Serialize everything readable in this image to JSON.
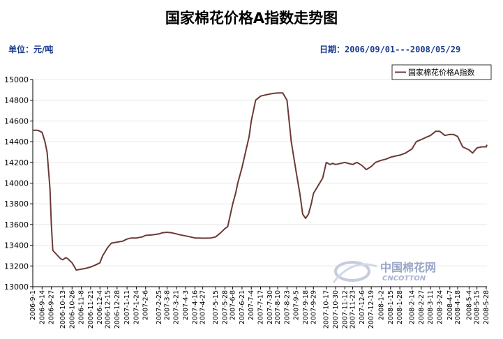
{
  "header": {
    "title": "国家棉花价格A指数走势图",
    "unit_label": "单位：元/吨",
    "date_range_label": "日期：2006/09/01---2008/05/29"
  },
  "watermark": {
    "name": "中国棉花网",
    "sub": "CNCOTTON"
  },
  "colors": {
    "series": "#6b3a35",
    "axis": "#000000",
    "grid": "#e8e8e8"
  },
  "chart_data": {
    "type": "line",
    "title": "国家棉花价格A指数走势图",
    "ylabel": "",
    "xlabel": "",
    "ylim": [
      13000,
      15000
    ],
    "yticks": [
      13000,
      13200,
      13400,
      13600,
      13800,
      14000,
      14200,
      14400,
      14600,
      14800,
      15000
    ],
    "grid": true,
    "legend": "top-right",
    "xtick_labels": [
      "2006-9-1",
      "2006-9-14",
      "2006-9-27",
      "2006-10-13",
      "2006-10-26",
      "2006-11-8",
      "2006-11-21",
      "2006-12-4",
      "2006-12-15",
      "2006-12-28",
      "2007-1-11",
      "2007-1-24",
      "2007-2-6",
      "2007-2-25",
      "2007-3-8",
      "2007-3-21",
      "2007-4-3",
      "2007-4-16",
      "2007-4-27",
      "2007-5-15",
      "2007-5-28",
      "2007-6-8",
      "2007-6-21",
      "2007-7-4",
      "2007-7-17",
      "2007-7-30",
      "2007-8-10",
      "2007-8-23",
      "2007-9-5",
      "2007-9-18",
      "2007-9-29",
      "2007-10-17",
      "2007-10-30",
      "2007-11-12",
      "2007-11-23",
      "2007-12-6",
      "2007-12-19",
      "2008-1-2",
      "2008-1-15",
      "2008-1-28",
      "2008-2-14",
      "2008-2-27",
      "2008-3-11",
      "2008-3-24",
      "2008-4-7",
      "2008-4-18",
      "2008-5-4",
      "2008-5-15",
      "2008-5-28"
    ],
    "series": [
      {
        "name": "国家棉花价格A指数",
        "x": [
          "2006-9-1",
          "2006-9-8",
          "2006-9-14",
          "2006-9-18",
          "2006-9-21",
          "2006-9-25",
          "2006-9-27",
          "2006-9-29",
          "2006-10-10",
          "2006-10-13",
          "2006-10-17",
          "2006-10-20",
          "2006-10-26",
          "2006-11-1",
          "2006-11-8",
          "2006-11-13",
          "2006-11-21",
          "2006-11-28",
          "2006-12-4",
          "2006-12-8",
          "2006-12-15",
          "2006-12-20",
          "2006-12-28",
          "2007-1-5",
          "2007-1-11",
          "2007-1-17",
          "2007-1-24",
          "2007-2-1",
          "2007-2-6",
          "2007-2-15",
          "2007-2-25",
          "2007-3-1",
          "2007-3-8",
          "2007-3-15",
          "2007-3-21",
          "2007-3-27",
          "2007-4-3",
          "2007-4-10",
          "2007-4-16",
          "2007-4-22",
          "2007-4-27",
          "2007-5-8",
          "2007-5-15",
          "2007-5-22",
          "2007-5-28",
          "2007-6-1",
          "2007-6-8",
          "2007-6-12",
          "2007-6-15",
          "2007-6-21",
          "2007-6-26",
          "2007-7-1",
          "2007-7-4",
          "2007-7-10",
          "2007-7-17",
          "2007-7-23",
          "2007-7-30",
          "2007-8-3",
          "2007-8-10",
          "2007-8-17",
          "2007-8-23",
          "2007-8-29",
          "2007-9-5",
          "2007-9-10",
          "2007-9-14",
          "2007-9-18",
          "2007-9-22",
          "2007-9-26",
          "2007-9-29",
          "2007-10-12",
          "2007-10-17",
          "2007-10-22",
          "2007-10-26",
          "2007-10-30",
          "2007-11-6",
          "2007-11-12",
          "2007-11-17",
          "2007-11-23",
          "2007-11-29",
          "2007-12-6",
          "2007-12-12",
          "2007-12-19",
          "2007-12-25",
          "2008-1-2",
          "2008-1-8",
          "2008-1-15",
          "2008-1-21",
          "2008-1-28",
          "2008-2-5",
          "2008-2-14",
          "2008-2-20",
          "2008-2-27",
          "2008-3-4",
          "2008-3-11",
          "2008-3-18",
          "2008-3-24",
          "2008-3-31",
          "2008-4-7",
          "2008-4-12",
          "2008-4-18",
          "2008-4-25",
          "2008-5-4",
          "2008-5-9",
          "2008-5-15",
          "2008-5-22",
          "2008-5-28",
          "2008-5-29"
        ],
        "values": [
          14510,
          14510,
          14490,
          14400,
          14300,
          13950,
          13600,
          13350,
          13270,
          13260,
          13280,
          13270,
          13230,
          13160,
          13170,
          13175,
          13190,
          13210,
          13230,
          13300,
          13380,
          13420,
          13430,
          13440,
          13460,
          13470,
          13470,
          13480,
          13495,
          13500,
          13510,
          13520,
          13525,
          13520,
          13510,
          13500,
          13490,
          13480,
          13470,
          13470,
          13468,
          13470,
          13480,
          13520,
          13560,
          13580,
          13800,
          13900,
          14000,
          14150,
          14300,
          14450,
          14600,
          14800,
          14840,
          14850,
          14860,
          14865,
          14870,
          14870,
          14800,
          14400,
          14100,
          13900,
          13700,
          13660,
          13700,
          13800,
          13900,
          14050,
          14200,
          14180,
          14190,
          14180,
          14190,
          14200,
          14190,
          14180,
          14200,
          14170,
          14130,
          14160,
          14200,
          14220,
          14230,
          14250,
          14260,
          14270,
          14290,
          14330,
          14400,
          14420,
          14440,
          14460,
          14500,
          14500,
          14460,
          14470,
          14470,
          14450,
          14350,
          14320,
          14290,
          14340,
          14350,
          14350,
          14370
        ],
        "color": "#6b3a35"
      }
    ]
  }
}
